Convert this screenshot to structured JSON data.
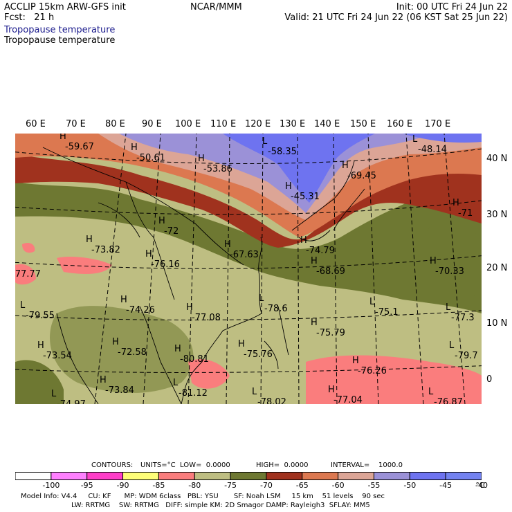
{
  "header": {
    "title_left": "ACCLIP 15km ARW-GFS init",
    "fcst": "Fcst:   21 h",
    "center": "NCAR/MMM",
    "init": "Init: 00 UTC Fri 24 Jun 22",
    "valid": "Valid: 21 UTC Fri 24 Jun 22 (06 KST Sat 25 Jun 22)",
    "field_blue": "Tropopause temperature",
    "field_black": "Tropopause temperature"
  },
  "map": {
    "lon_labels": [
      "60 E",
      "70 E",
      "80 E",
      "90 E",
      "100 E",
      "110 E",
      "120 E",
      "130 E",
      "140 E",
      "150 E",
      "160 E",
      "170 E"
    ],
    "lat_labels": [
      "40 N",
      "30 N",
      "20 N",
      "10 N",
      "0"
    ],
    "extremes": [
      {
        "t": "H",
        "v": "-59.67"
      },
      {
        "t": "H",
        "v": "-50.61"
      },
      {
        "t": "H",
        "v": "-53.86"
      },
      {
        "t": "L",
        "v": "-58.35"
      },
      {
        "t": "H",
        "v": "-45.31"
      },
      {
        "t": "L",
        "v": "-48.14"
      },
      {
        "t": "H",
        "v": "-69.45"
      },
      {
        "t": "H",
        "v": "-71"
      },
      {
        "t": "H",
        "v": "-72"
      },
      {
        "t": "H",
        "v": "-73.82"
      },
      {
        "t": "H",
        "v": "-76.16"
      },
      {
        "t": "H",
        "v": "-67.63"
      },
      {
        "t": "H",
        "v": "-74.79"
      },
      {
        "t": "H",
        "v": "-68.69"
      },
      {
        "t": "H",
        "v": "-70.33"
      },
      {
        "t": "L",
        "v": "-77.77"
      },
      {
        "t": "L",
        "v": "-79.55"
      },
      {
        "t": "H",
        "v": "-74.26"
      },
      {
        "t": "H",
        "v": "-77.08"
      },
      {
        "t": "L",
        "v": "-78.6"
      },
      {
        "t": "L",
        "v": "-75.1"
      },
      {
        "t": "L",
        "v": "-77.3"
      },
      {
        "t": "H",
        "v": "-75.79"
      },
      {
        "t": "H",
        "v": "-73.54"
      },
      {
        "t": "H",
        "v": "-72.58"
      },
      {
        "t": "H",
        "v": "-80.81"
      },
      {
        "t": "H",
        "v": "-75.76"
      },
      {
        "t": "H",
        "v": "-76.26"
      },
      {
        "t": "L",
        "v": "-79.7"
      },
      {
        "t": "H",
        "v": "-73.84"
      },
      {
        "t": "L",
        "v": "-81.12"
      },
      {
        "t": "L",
        "v": "-78.02"
      },
      {
        "t": "H",
        "v": "-77.04"
      },
      {
        "t": "L",
        "v": "-76.87"
      },
      {
        "t": "L",
        "v": "-74.97"
      }
    ]
  },
  "contour_info": {
    "contours": "CONTOURS:",
    "units": "UNITS=°C",
    "low": "LOW=  0.0000",
    "high": "HIGH=  0.0000",
    "interval": "INTERVAL=    1000.0"
  },
  "colorbar": {
    "labels": [
      "-100",
      "-95",
      "-90",
      "-85",
      "-80",
      "-75",
      "-70",
      "-65",
      "-60",
      "-55",
      "-50",
      "-45",
      "-40",
      "°C"
    ],
    "colors": [
      "#ffffff",
      "#ff80ff",
      "#ff3ec8",
      "#ffff78",
      "#fa7d7d",
      "#bebe82",
      "#6e7832",
      "#a0321e",
      "#dc7850",
      "#dca596",
      "#9b91d7",
      "#6e73f0",
      "#7382f0"
    ]
  },
  "footer": {
    "line1": "Model Info: V4.4     CU: KF      MP: WDM 6class   PBL: YSU       SF: Noah LSM     15 km    51 levels    90 sec",
    "line2": "LW: RRTMG    SW: RRTMG   DIFF: simple KM: 2D Smagor DAMP: Rayleigh3  SFLAY: MM5"
  }
}
